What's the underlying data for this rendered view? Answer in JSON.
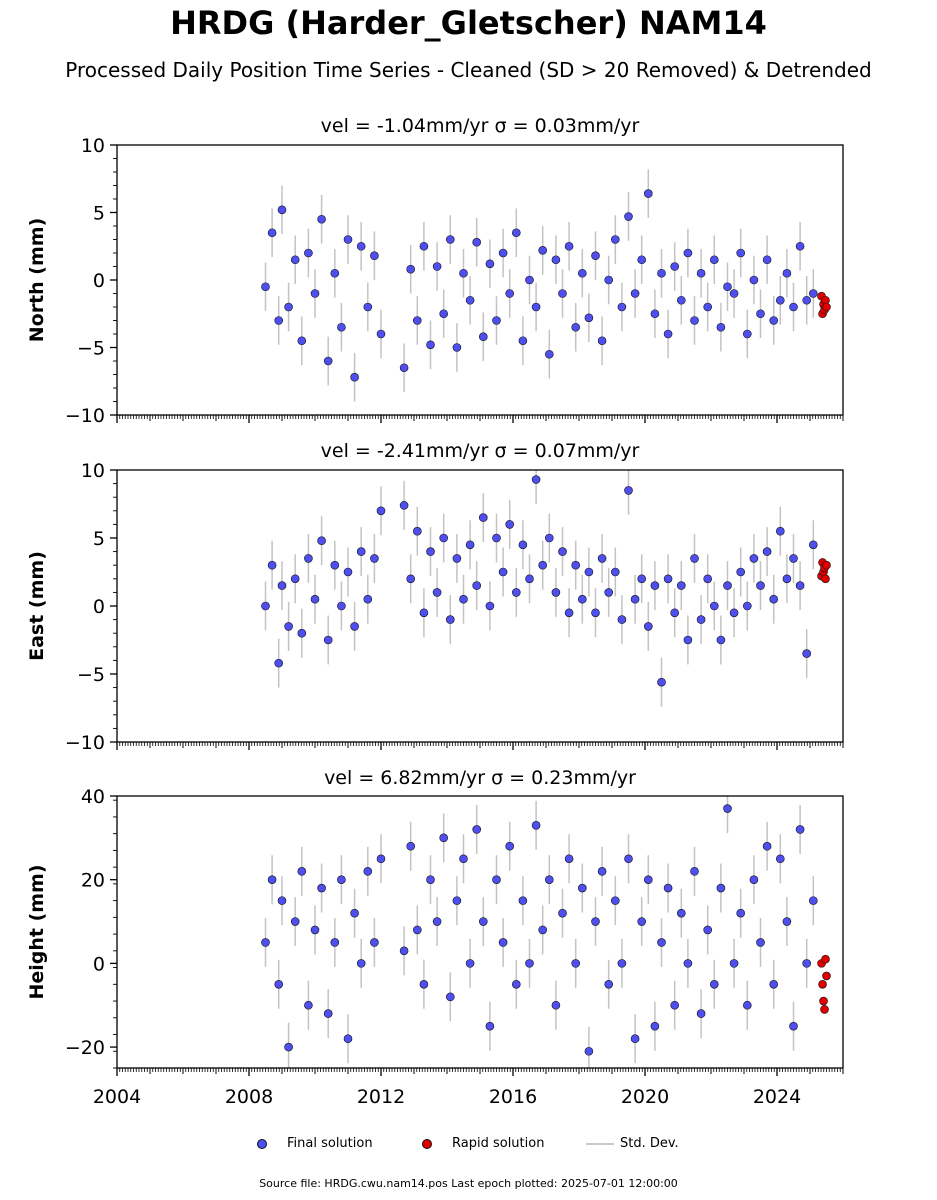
{
  "header": {
    "title": "HRDG (Harder_Gletscher) NAM14",
    "subtitle": "Processed Daily Position Time Series - Cleaned (SD > 20 Removed) & Detrended"
  },
  "legend": {
    "final": "Final solution",
    "rapid": "Rapid solution",
    "stddev": "Std. Dev."
  },
  "footer": {
    "text": "Source file: HRDG.cwu.nam14.pos  Last epoch plotted: 2025-07-01 12:00:00"
  },
  "colors": {
    "final": "#4f4ff0",
    "rapid": "#e00000",
    "stddev": "#aaaaaa",
    "edge": "#111111"
  },
  "chart_data": [
    {
      "type": "scatter",
      "panel": "north",
      "title": "vel = -1.04mm/yr   σ = 0.03mm/yr",
      "ylabel": "North (mm)",
      "xlim": [
        2004.0,
        2026.0
      ],
      "ylim": [
        -10,
        10
      ],
      "yticks": [
        -10,
        -5,
        0,
        5,
        10
      ],
      "xticks": [
        2004,
        2008,
        2012,
        2016,
        2020,
        2024
      ],
      "show_xtick_labels": false,
      "series": [
        {
          "name": "Final solution",
          "x": [
            2008.5,
            2008.7,
            2008.9,
            2009.0,
            2009.2,
            2009.4,
            2009.6,
            2009.8,
            2010.0,
            2010.2,
            2010.4,
            2010.6,
            2010.8,
            2011.0,
            2011.2,
            2011.4,
            2011.6,
            2011.8,
            2012.0,
            2012.7,
            2012.9,
            2013.1,
            2013.3,
            2013.5,
            2013.7,
            2013.9,
            2014.1,
            2014.3,
            2014.5,
            2014.7,
            2014.9,
            2015.1,
            2015.3,
            2015.5,
            2015.7,
            2015.9,
            2016.1,
            2016.3,
            2016.5,
            2016.7,
            2016.9,
            2017.1,
            2017.3,
            2017.5,
            2017.7,
            2017.9,
            2018.1,
            2018.3,
            2018.5,
            2018.7,
            2018.9,
            2019.1,
            2019.3,
            2019.5,
            2019.7,
            2019.9,
            2020.1,
            2020.3,
            2020.5,
            2020.7,
            2020.9,
            2021.1,
            2021.3,
            2021.5,
            2021.7,
            2021.9,
            2022.1,
            2022.3,
            2022.5,
            2022.7,
            2022.9,
            2023.1,
            2023.3,
            2023.5,
            2023.7,
            2023.9,
            2024.1,
            2024.3,
            2024.5,
            2024.7,
            2024.9,
            2025.1
          ],
          "y": [
            -0.5,
            3.5,
            -3.0,
            5.2,
            -2.0,
            1.5,
            -4.5,
            2.0,
            -1.0,
            4.5,
            -6.0,
            0.5,
            -3.5,
            3.0,
            -7.2,
            2.5,
            -2.0,
            1.8,
            -4.0,
            -6.5,
            0.8,
            -3.0,
            2.5,
            -4.8,
            1.0,
            -2.5,
            3.0,
            -5.0,
            0.5,
            -1.5,
            2.8,
            -4.2,
            1.2,
            -3.0,
            2.0,
            -1.0,
            3.5,
            -4.5,
            0.0,
            -2.0,
            2.2,
            -5.5,
            1.5,
            -1.0,
            2.5,
            -3.5,
            0.5,
            -2.8,
            1.8,
            -4.5,
            0.0,
            3.0,
            -2.0,
            4.7,
            -1.0,
            1.5,
            6.4,
            -2.5,
            0.5,
            -4.0,
            1.0,
            -1.5,
            2.0,
            -3.0,
            0.5,
            -2.0,
            1.5,
            -3.5,
            -0.5,
            -1.0,
            2.0,
            -4.0,
            0.0,
            -2.5,
            1.5,
            -3.0,
            -1.5,
            0.5,
            -2.0,
            2.5,
            -1.5,
            -1.0
          ]
        },
        {
          "name": "Rapid solution",
          "x": [
            2025.35,
            2025.38,
            2025.41,
            2025.44,
            2025.47,
            2025.5
          ],
          "y": [
            -1.2,
            -2.5,
            -1.8,
            -2.2,
            -1.5,
            -2.0
          ]
        }
      ]
    },
    {
      "type": "scatter",
      "panel": "east",
      "title": "vel = -2.41mm/yr   σ = 0.07mm/yr",
      "ylabel": "East (mm)",
      "xlim": [
        2004.0,
        2026.0
      ],
      "ylim": [
        -10,
        10
      ],
      "yticks": [
        -10,
        -5,
        0,
        5,
        10
      ],
      "xticks": [
        2004,
        2008,
        2012,
        2016,
        2020,
        2024
      ],
      "show_xtick_labels": false,
      "series": [
        {
          "name": "Final solution",
          "x": [
            2008.5,
            2008.7,
            2008.9,
            2009.0,
            2009.2,
            2009.4,
            2009.6,
            2009.8,
            2010.0,
            2010.2,
            2010.4,
            2010.6,
            2010.8,
            2011.0,
            2011.2,
            2011.4,
            2011.6,
            2011.8,
            2012.0,
            2012.7,
            2012.9,
            2013.1,
            2013.3,
            2013.5,
            2013.7,
            2013.9,
            2014.1,
            2014.3,
            2014.5,
            2014.7,
            2014.9,
            2015.1,
            2015.3,
            2015.5,
            2015.7,
            2015.9,
            2016.1,
            2016.3,
            2016.5,
            2016.7,
            2016.9,
            2017.1,
            2017.3,
            2017.5,
            2017.7,
            2017.9,
            2018.1,
            2018.3,
            2018.5,
            2018.7,
            2018.9,
            2019.1,
            2019.3,
            2019.5,
            2019.7,
            2019.9,
            2020.1,
            2020.3,
            2020.5,
            2020.7,
            2020.9,
            2021.1,
            2021.3,
            2021.5,
            2021.7,
            2021.9,
            2022.1,
            2022.3,
            2022.5,
            2022.7,
            2022.9,
            2023.1,
            2023.3,
            2023.5,
            2023.7,
            2023.9,
            2024.1,
            2024.3,
            2024.5,
            2024.7,
            2024.9,
            2025.1
          ],
          "y": [
            0.0,
            3.0,
            -4.2,
            1.5,
            -1.5,
            2.0,
            -2.0,
            3.5,
            0.5,
            4.8,
            -2.5,
            3.0,
            0.0,
            2.5,
            -1.5,
            4.0,
            0.5,
            3.5,
            7.0,
            7.4,
            2.0,
            5.5,
            -0.5,
            4.0,
            1.0,
            5.0,
            -1.0,
            3.5,
            0.5,
            4.5,
            1.5,
            6.5,
            0.0,
            5.0,
            2.5,
            6.0,
            1.0,
            4.5,
            2.0,
            9.3,
            3.0,
            5.0,
            1.0,
            4.0,
            -0.5,
            3.0,
            0.5,
            2.5,
            -0.5,
            3.5,
            1.0,
            2.5,
            -1.0,
            8.5,
            0.5,
            2.0,
            -1.5,
            1.5,
            -5.6,
            2.0,
            -0.5,
            1.5,
            -2.5,
            3.5,
            -1.0,
            2.0,
            0.0,
            -2.5,
            1.5,
            -0.5,
            2.5,
            0.0,
            3.5,
            1.5,
            4.0,
            0.5,
            5.5,
            2.0,
            3.5,
            1.5,
            -3.5,
            4.5
          ]
        },
        {
          "name": "Rapid solution",
          "x": [
            2025.35,
            2025.38,
            2025.41,
            2025.44,
            2025.47,
            2025.5
          ],
          "y": [
            2.2,
            3.2,
            2.5,
            2.8,
            2.0,
            3.0
          ]
        }
      ]
    },
    {
      "type": "scatter",
      "panel": "height",
      "title": "vel = 6.82mm/yr   σ = 0.23mm/yr",
      "ylabel": "Height (mm)",
      "xlim": [
        2004.0,
        2026.0
      ],
      "ylim": [
        -25,
        40
      ],
      "yticks": [
        -20,
        0,
        20,
        40
      ],
      "xticks": [
        2004,
        2008,
        2012,
        2016,
        2020,
        2024
      ],
      "show_xtick_labels": true,
      "series": [
        {
          "name": "Final solution",
          "x": [
            2008.5,
            2008.7,
            2008.9,
            2009.0,
            2009.2,
            2009.4,
            2009.6,
            2009.8,
            2010.0,
            2010.2,
            2010.4,
            2010.6,
            2010.8,
            2011.0,
            2011.2,
            2011.4,
            2011.6,
            2011.8,
            2012.0,
            2012.7,
            2012.9,
            2013.1,
            2013.3,
            2013.5,
            2013.7,
            2013.9,
            2014.1,
            2014.3,
            2014.5,
            2014.7,
            2014.9,
            2015.1,
            2015.3,
            2015.5,
            2015.7,
            2015.9,
            2016.1,
            2016.3,
            2016.5,
            2016.7,
            2016.9,
            2017.1,
            2017.3,
            2017.5,
            2017.7,
            2017.9,
            2018.1,
            2018.3,
            2018.5,
            2018.7,
            2018.9,
            2019.1,
            2019.3,
            2019.5,
            2019.7,
            2019.9,
            2020.1,
            2020.3,
            2020.5,
            2020.7,
            2020.9,
            2021.1,
            2021.3,
            2021.5,
            2021.7,
            2021.9,
            2022.1,
            2022.3,
            2022.5,
            2022.7,
            2022.9,
            2023.1,
            2023.3,
            2023.5,
            2023.7,
            2023.9,
            2024.1,
            2024.3,
            2024.5,
            2024.7,
            2024.9,
            2025.1
          ],
          "y": [
            5.0,
            20.0,
            -5.0,
            15.0,
            -20.0,
            10.0,
            22.0,
            -10.0,
            8.0,
            18.0,
            -12.0,
            5.0,
            20.0,
            -18.0,
            12.0,
            0.0,
            22.0,
            5.0,
            25.0,
            3.0,
            28.0,
            8.0,
            -5.0,
            20.0,
            10.0,
            30.0,
            -8.0,
            15.0,
            25.0,
            0.0,
            32.0,
            10.0,
            -15.0,
            20.0,
            5.0,
            28.0,
            -5.0,
            15.0,
            0.0,
            33.0,
            8.0,
            20.0,
            -10.0,
            12.0,
            25.0,
            0.0,
            18.0,
            -21.0,
            10.0,
            22.0,
            -5.0,
            15.0,
            0.0,
            25.0,
            -18.0,
            10.0,
            20.0,
            -15.0,
            5.0,
            18.0,
            -10.0,
            12.0,
            0.0,
            22.0,
            -12.0,
            8.0,
            -5.0,
            18.0,
            37.0,
            0.0,
            12.0,
            -10.0,
            20.0,
            5.0,
            28.0,
            -5.0,
            25.0,
            10.0,
            -15.0,
            32.0,
            0.0,
            15.0
          ]
        },
        {
          "name": "Rapid solution",
          "x": [
            2025.35,
            2025.38,
            2025.41,
            2025.44,
            2025.47,
            2025.5
          ],
          "y": [
            0.0,
            -5.0,
            -9.0,
            -11.0,
            1.0,
            -3.0
          ]
        }
      ]
    }
  ]
}
